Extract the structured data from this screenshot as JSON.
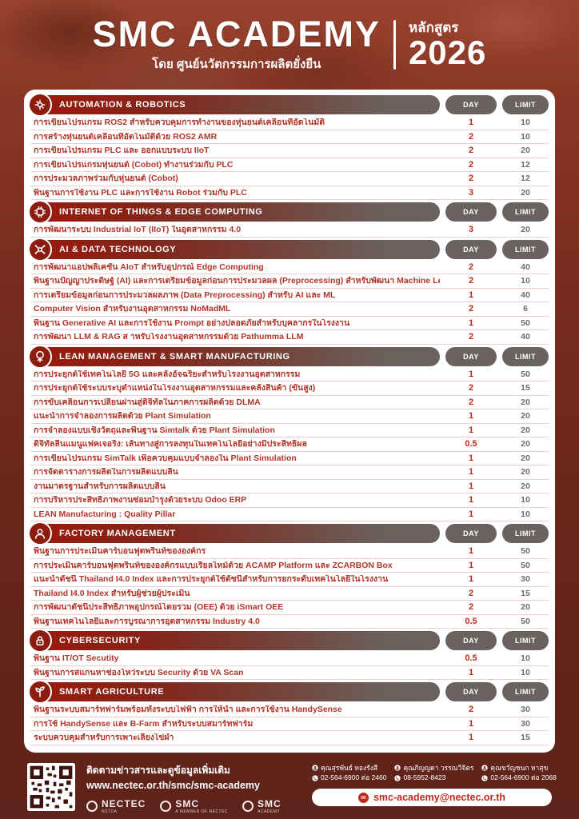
{
  "header": {
    "title": "SMC ACADEMY",
    "subtitle": "โดย ศูนย์นวัตกรรมการผลิตยั่งยืน",
    "program_label": "หลักสูตร",
    "year": "2026"
  },
  "table": {
    "col_day": "DAY",
    "col_limit": "LIMIT"
  },
  "colors": {
    "accent_red": "#9c190b",
    "bar_gray": "#6a6260",
    "course_text": "#b2362a",
    "day_text": "#c02a1c",
    "limit_text": "#6d6d6d",
    "footer_bg": "#5e231a"
  },
  "sections": [
    {
      "title": "AUTOMATION & ROBOTICS",
      "icon": "automation-robotics-icon",
      "rows": [
        {
          "name": "การเขียนโปรแกรม ROS2 สำหรับควบคุมการทำงานของหุ่นยนต์เคลื่อนที่อัตโนมัติ",
          "day": "1",
          "limit": "10"
        },
        {
          "name": "การสร้างหุ่นยนต์เคลื่อนที่อัตโนมัติด้วย ROS2 AMR",
          "day": "2",
          "limit": "10"
        },
        {
          "name": "การเขียนโปรแกรม PLC และ ออกแบบระบบ IIoT",
          "day": "2",
          "limit": "20"
        },
        {
          "name": "การเขียนโปรแกรมหุ่นยนต์ (Cobot) ทำงานร่วมกับ PLC",
          "day": "2",
          "limit": "12"
        },
        {
          "name": "การประมวลภาพร่วมกับหุ่นยนต์ (Cobot)",
          "day": "2",
          "limit": "12"
        },
        {
          "name": "พื้นฐานการใช้งาน PLC และการใช้งาน Robot ร่วมกับ PLC",
          "day": "3",
          "limit": "20"
        }
      ]
    },
    {
      "title": "INTERNET OF THINGS & EDGE COMPUTING",
      "icon": "iot-edge-icon",
      "rows": [
        {
          "name": "การพัฒนาระบบ Industrial IoT (IIoT) ในอุตสาหกรรม 4.0",
          "day": "3",
          "limit": "20"
        }
      ]
    },
    {
      "title": "AI & DATA TECHNOLOGY",
      "icon": "ai-data-icon",
      "rows": [
        {
          "name": "การพัฒนาแอปพลิเคชัน AIoT สำหรับอุปกรณ์ Edge Computing",
          "day": "2",
          "limit": "40"
        },
        {
          "name": "พื้นฐานปัญญาประดิษฐ์ (AI) และการเตรียมข้อมูลก่อนการประมวลผล (Preprocessing) สำหรับพัฒนา Machine Learning",
          "day": "2",
          "limit": "10"
        },
        {
          "name": "การเตรียมข้อมูลก่อนการประมวลผลภาพ (Data Preprocessing) สำหรับ AI และ ML",
          "day": "1",
          "limit": "40"
        },
        {
          "name": "Computer Vision สำหรับงานอุตสาหกรรม NoMadML",
          "day": "2",
          "limit": "6"
        },
        {
          "name": "พื้นฐาน Generative AI และการใช้งาน Prompt อย่างปลอดภัยสำหรับบุคลากรในโรงงาน",
          "day": "1",
          "limit": "50"
        },
        {
          "name": "การพัฒนา LLM & RAG ส าหรับโรงงานอุตสาหกรรมด้วย Pathumma LLM",
          "day": "2",
          "limit": "40"
        }
      ]
    },
    {
      "title": "LEAN MANAGEMENT & SMART MANUFACTURING",
      "icon": "lean-manufacturing-icon",
      "rows": [
        {
          "name": "การประยุกต์ใช้เทคโนโลยี 5G และคลังอัจฉริยะสำหรับโรงงานอุตสาหกรรม",
          "day": "1",
          "limit": "50"
        },
        {
          "name": "การประยุกต์ใช้ระบบระบุตำแหน่งในโรงงานอุตสาหกรรมและคลังสินค้า (ขั้นสูง)",
          "day": "2",
          "limit": "15"
        },
        {
          "name": "การขับเคลื่อนการเปลี่ยนผ่านสู่ดิจิทัลในภาคการผลิตด้วย DLMA",
          "day": "2",
          "limit": "20"
        },
        {
          "name": "แนะนำการจำลองการผลิตด้วย Plant Simulation",
          "day": "1",
          "limit": "20"
        },
        {
          "name": "การจำลองแบบเชิงวัตถุและพื้นฐาน Simtalk ด้วย Plant Simulation",
          "day": "1",
          "limit": "20"
        },
        {
          "name": "ดิจิทัลลีนแมนูแฟคเจอริง: เส้นทางสู่การลงทุนในเทคโนโลยีอย่างมีประสิทธิผล",
          "day": "0.5",
          "limit": "20"
        },
        {
          "name": "การเขียนโปรแกรม SimTalk เพื่อควบคุมแบบจำลองใน Plant Simulation",
          "day": "1",
          "limit": "20"
        },
        {
          "name": "การจัดตารางการผลิตในการผลิตแบบลีน",
          "day": "1",
          "limit": "20"
        },
        {
          "name": "งานมาตรฐานสำหรับการผลิตแบบลีน",
          "day": "1",
          "limit": "20"
        },
        {
          "name": "การบริหารประสิทธิภาพงานซ่อมบำรุงด้วยระบบ Odoo ERP",
          "day": "1",
          "limit": "10"
        },
        {
          "name": "LEAN Manufacturing : Quality Pillar",
          "day": "1",
          "limit": "10"
        }
      ]
    },
    {
      "title": "FACTORY MANAGEMENT",
      "icon": "factory-management-icon",
      "rows": [
        {
          "name": "พื้นฐานการประเมินคาร์บอนฟุตพริ้นท์ขององค์กร",
          "day": "1",
          "limit": "50"
        },
        {
          "name": "การประเมินคาร์บอนฟุตพริ้นท์ขององค์กรแบบเรียลไทม์ด้วย ACAMP Platform และ ZCARBON Box",
          "day": "1",
          "limit": "50"
        },
        {
          "name": "แนะนำดัชนี Thailand I4.0 Index และการประยุกต์ใช้ดัชนีสำหรับการยกระดับเทคโนโลยีในโรงงาน",
          "day": "1",
          "limit": "30"
        },
        {
          "name": "Thailand I4.0 Index สำหรับผู้ช่วยผู้ประเมิน",
          "day": "2",
          "limit": "15"
        },
        {
          "name": "การพัฒนาดัชนีประสิทธิภาพอุปกรณ์โดยรวม (OEE) ด้วย iSmart OEE",
          "day": "2",
          "limit": "20"
        },
        {
          "name": "พื้นฐานเทคโนโลยีและการบูรณาการอุตสาหกรรม Industry 4.0",
          "day": "0.5",
          "limit": "50"
        }
      ]
    },
    {
      "title": "CYBERSECURITY",
      "icon": "cybersecurity-icon",
      "rows": [
        {
          "name": "พื้นฐาน IT/OT Secutity",
          "day": "0.5",
          "limit": "10"
        },
        {
          "name": "พื้นฐานการสแกนหาช่องโหว่ระบบ Security ด้วย VA Scan",
          "day": "1",
          "limit": "10"
        }
      ]
    },
    {
      "title": "SMART AGRICULTURE",
      "icon": "smart-agriculture-icon",
      "rows": [
        {
          "name": "พื้นฐานระบบสมาร์ทฟาร์มพร้อมทั้งระบบไฟฟ้า การให้น้ำ และการใช้งาน HandySense",
          "day": "2",
          "limit": "30"
        },
        {
          "name": "การใช้ HandySense และ B-Farm สำหรับระบบสมาร์ทฟาร์ม",
          "day": "1",
          "limit": "30"
        },
        {
          "name": "ระบบควบคุมสำหรับการเพาะเลี้ยงไข่ผำ",
          "day": "1",
          "limit": "15"
        }
      ]
    }
  ],
  "footer": {
    "follow_title": "ติดตามข่าวสารและดูข้อมูลเพิ่มเติม",
    "website": "www.nectec.or.th/smc/smc-academy",
    "logos": [
      {
        "label": "NECTEC",
        "sub": "NSTDA",
        "icon": "nectec-logo"
      },
      {
        "label": "SMC",
        "sub": "A MEMBER OF NECTEC",
        "icon": "smc-logo"
      },
      {
        "label": "SMC",
        "sub": "ACADEMY",
        "icon": "smc-academy-logo"
      }
    ],
    "contacts": [
      {
        "name": "คุณสุรพันธ์ ทองรังสี",
        "phone": "02-564-6900 ต่อ 2460"
      },
      {
        "name": "คุณภิญญดา วรรณวิจิตร",
        "phone": "08-5952-8423"
      },
      {
        "name": "คุณขวัญชนก หาสุข",
        "phone": "02-564-6900 ต่อ 2068"
      }
    ],
    "email": "smc-academy@nectec.or.th"
  }
}
